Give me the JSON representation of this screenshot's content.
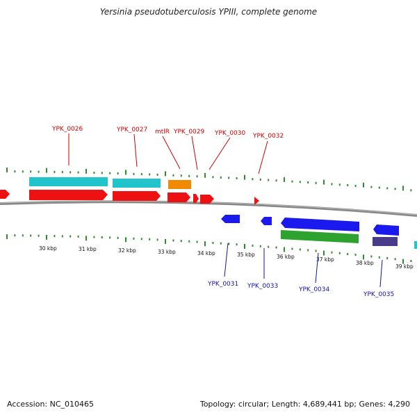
{
  "title": "Yersinia pseudotuberculosis YPIII, complete genome",
  "footer": {
    "accession": "Accession: NC_010465",
    "summary": "Topology: circular; Length: 4,689,441 bp; Genes: 4,290"
  },
  "colors": {
    "red": "#ee1111",
    "cyan": "#22c4cc",
    "orange": "#f08a00",
    "blue": "#1a1aee",
    "green": "#2ea22e",
    "purple": "#4a3a8a",
    "tick": "#2e8b2e",
    "backbone": "#888888",
    "label_red": "#cc0000",
    "label_blue": "#1111aa"
  },
  "kbp_labels": [
    "30 kbp",
    "31 kbp",
    "32 kbp",
    "33 kbp",
    "34 kbp",
    "35 kbp",
    "36 kbp",
    "37 kbp",
    "38 kbp",
    "39 kbp"
  ],
  "top_labels": [
    "YPK_0026",
    "YPK_0027",
    "mtlR",
    "YPK_0029",
    "YPK_0030",
    "YPK_0032"
  ],
  "bottom_labels": [
    "YPK_0031",
    "YPK_0033",
    "YPK_0034",
    "YPK_0035"
  ]
}
